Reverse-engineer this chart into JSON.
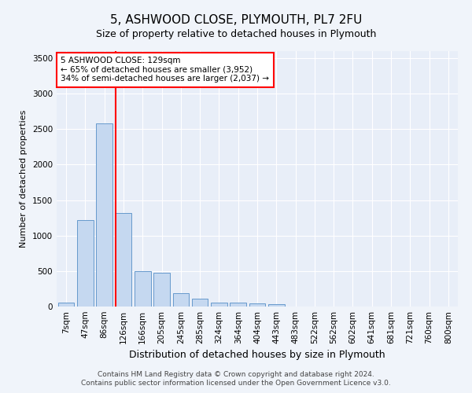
{
  "title1": "5, ASHWOOD CLOSE, PLYMOUTH, PL7 2FU",
  "title2": "Size of property relative to detached houses in Plymouth",
  "xlabel": "Distribution of detached houses by size in Plymouth",
  "ylabel": "Number of detached properties",
  "bar_labels": [
    "7sqm",
    "47sqm",
    "86sqm",
    "126sqm",
    "166sqm",
    "205sqm",
    "245sqm",
    "285sqm",
    "324sqm",
    "364sqm",
    "404sqm",
    "443sqm",
    "483sqm",
    "522sqm",
    "562sqm",
    "602sqm",
    "641sqm",
    "681sqm",
    "721sqm",
    "760sqm",
    "800sqm"
  ],
  "bar_values": [
    50,
    1220,
    2580,
    1320,
    500,
    480,
    185,
    115,
    55,
    55,
    40,
    30,
    5,
    0,
    0,
    0,
    0,
    0,
    0,
    0,
    0
  ],
  "bar_color": "#c5d8f0",
  "bar_edgecolor": "#6699cc",
  "annotation_text": "5 ASHWOOD CLOSE: 129sqm\n← 65% of detached houses are smaller (3,952)\n34% of semi-detached houses are larger (2,037) →",
  "annotation_box_color": "white",
  "annotation_box_edgecolor": "red",
  "ylim": [
    0,
    3600
  ],
  "yticks": [
    0,
    500,
    1000,
    1500,
    2000,
    2500,
    3000,
    3500
  ],
  "footer1": "Contains HM Land Registry data © Crown copyright and database right 2024.",
  "footer2": "Contains public sector information licensed under the Open Government Licence v3.0.",
  "bg_color": "#f0f4fa",
  "plot_bg_color": "#e8eef8",
  "title1_fontsize": 11,
  "title2_fontsize": 9,
  "ylabel_fontsize": 8,
  "xlabel_fontsize": 9,
  "tick_fontsize": 7.5,
  "footer_fontsize": 6.5
}
